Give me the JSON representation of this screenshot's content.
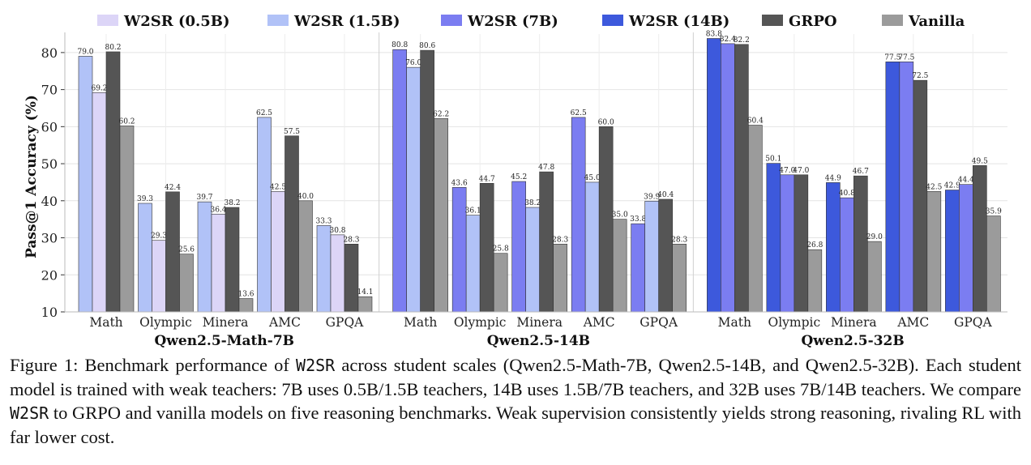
{
  "chart_data": {
    "type": "bar",
    "ylabel": "Pass@1 Accuracy (%)",
    "ylim": [
      10,
      85
    ],
    "yticks": [
      10,
      20,
      30,
      40,
      50,
      60,
      70,
      80
    ],
    "grid": true,
    "legend": {
      "placement": "top",
      "entries": [
        {
          "label": "W2SR (0.5B)",
          "color": "#dcd5f7"
        },
        {
          "label": "W2SR (1.5B)",
          "color": "#b1c2f7"
        },
        {
          "label": "W2SR (7B)",
          "color": "#7b7df1"
        },
        {
          "label": "W2SR (14B)",
          "color": "#3d59dc"
        },
        {
          "label": "GRPO",
          "color": "#555555"
        },
        {
          "label": "Vanilla",
          "color": "#9b9b9b"
        }
      ]
    },
    "panels": [
      {
        "title": "Qwen2.5-Math-7B",
        "categories": [
          "Math",
          "Olympic",
          "Minera",
          "AMC",
          "GPQA"
        ],
        "series": [
          {
            "name": "W2SR (1.5B)",
            "color": "#b1c2f7",
            "values": [
              79.0,
              39.3,
              39.7,
              62.5,
              33.3
            ]
          },
          {
            "name": "W2SR (0.5B)",
            "color": "#dcd5f7",
            "values": [
              69.2,
              29.3,
              36.4,
              42.5,
              30.8
            ]
          },
          {
            "name": "GRPO",
            "color": "#555555",
            "values": [
              80.2,
              42.4,
              38.2,
              57.5,
              28.3
            ]
          },
          {
            "name": "Vanilla",
            "color": "#9b9b9b",
            "values": [
              60.2,
              25.6,
              13.6,
              40.0,
              14.1
            ]
          }
        ],
        "labels": [
          [
            "79.0",
            "39.3",
            "39.7",
            "62.5",
            "33.3"
          ],
          [
            "69.2",
            "29.3",
            "36.4",
            "42.5",
            "30.8"
          ],
          [
            "80.2",
            "42.4",
            "38.2",
            "57.5",
            "28.3"
          ],
          [
            "60.2",
            "25.6",
            "13.6",
            "40.0",
            "14.1"
          ]
        ]
      },
      {
        "title": "Qwen2.5-14B",
        "categories": [
          "Math",
          "Olympic",
          "Minera",
          "AMC",
          "GPQA"
        ],
        "series": [
          {
            "name": "W2SR (7B)",
            "color": "#7b7df1",
            "values": [
              80.8,
              43.6,
              45.2,
              62.5,
              33.8
            ]
          },
          {
            "name": "W2SR (1.5B)",
            "color": "#b1c2f7",
            "values": [
              76.0,
              36.1,
              38.2,
              45.0,
              39.9
            ]
          },
          {
            "name": "GRPO",
            "color": "#555555",
            "values": [
              80.6,
              44.7,
              47.8,
              60.0,
              40.4
            ]
          },
          {
            "name": "Vanilla",
            "color": "#9b9b9b",
            "values": [
              62.2,
              25.8,
              28.3,
              35.0,
              28.3
            ]
          }
        ],
        "labels": [
          [
            "80.8",
            "43.6",
            "45.2",
            "62.5",
            "33.8"
          ],
          [
            "76.0",
            "36.1",
            "38.2",
            "45.0",
            "39.9"
          ],
          [
            "80.6",
            "44.7",
            "47.8",
            "60.0",
            "40.4"
          ],
          [
            "62.2",
            "25.8",
            "28.3",
            "35.0",
            "28.3"
          ]
        ]
      },
      {
        "title": "Qwen2.5-32B",
        "categories": [
          "Math",
          "Olympic",
          "Minera",
          "AMC",
          "GPQA"
        ],
        "series": [
          {
            "name": "W2SR (14B)",
            "color": "#3d59dc",
            "values": [
              83.8,
              50.1,
              44.9,
              77.5,
              42.9
            ]
          },
          {
            "name": "W2SR (7B)",
            "color": "#7b7df1",
            "values": [
              82.4,
              47.0,
              40.8,
              77.5,
              44.4
            ]
          },
          {
            "name": "GRPO",
            "color": "#555555",
            "values": [
              82.2,
              47.0,
              46.7,
              72.5,
              49.5
            ]
          },
          {
            "name": "Vanilla",
            "color": "#9b9b9b",
            "values": [
              60.4,
              26.8,
              29.0,
              42.5,
              35.9
            ]
          }
        ],
        "labels": [
          [
            "83.8",
            "50.1",
            "44.9",
            "77.5",
            "42.9"
          ],
          [
            "82.4",
            "47.0",
            "40.8",
            "77.5",
            "44.4"
          ],
          [
            "82.2",
            "47.0",
            "46.7",
            "72.5",
            "49.5"
          ],
          [
            "60.4",
            "26.8",
            "29.0",
            "42.5",
            "35.9"
          ]
        ]
      }
    ]
  },
  "caption": {
    "t1": "Figure 1:  Benchmark performance of ",
    "m1": "W2SR",
    "t2": " across student scales (Qwen2.5-Math-7B, Qwen2.5-14B, and Qwen2.5-32B). Each student model is trained with weak teachers:  7B uses 0.5B/1.5B teachers, 14B uses 1.5B/7B teachers, and 32B uses 7B/14B teachers.  We compare ",
    "m2": "W2SR",
    "t3": " to GRPO and vanilla models on five reasoning benchmarks. Weak supervision consistently yields strong reasoning, rivaling RL with far lower cost."
  }
}
